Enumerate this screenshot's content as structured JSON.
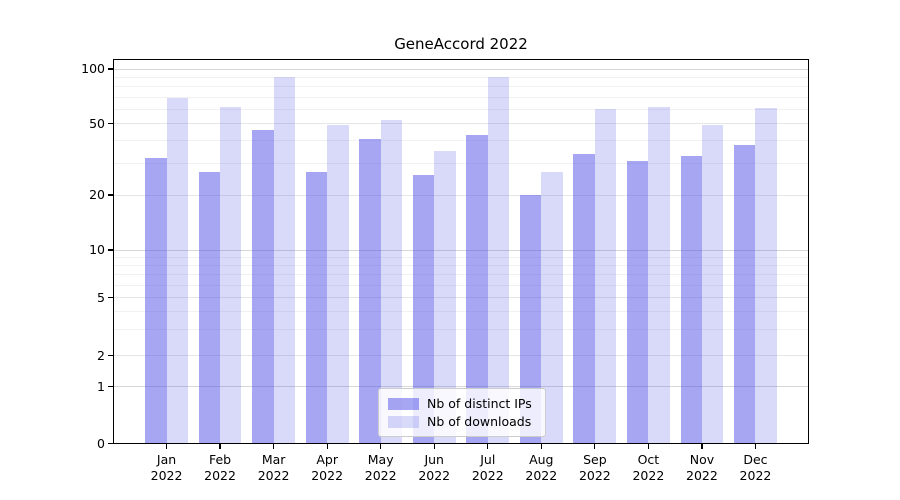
{
  "title": "GeneAccord 2022",
  "colors": {
    "bar_distinct_ips": "rgba(80,80,230,0.51)",
    "bar_downloads": "rgba(80,80,230,0.22)",
    "grid_major": "#d7d7d7",
    "grid_labeled_minor": "#e6e6e6",
    "grid_minor": "#f1f1f1",
    "axis": "#000000"
  },
  "y_axis": {
    "tick_labels": [
      "100",
      "50",
      "20",
      "10",
      "5",
      "2",
      "1",
      "0"
    ],
    "tick_values": [
      100,
      50,
      20,
      10,
      5,
      2,
      1,
      0
    ]
  },
  "x_axis": {
    "months": [
      "Jan",
      "Feb",
      "Mar",
      "Apr",
      "May",
      "Jun",
      "Jul",
      "Aug",
      "Sep",
      "Oct",
      "Nov",
      "Dec"
    ],
    "year": "2022"
  },
  "legend": {
    "items": [
      "Nb of distinct IPs",
      "Nb of downloads"
    ]
  },
  "chart_data": {
    "type": "bar",
    "title": "GeneAccord 2022",
    "categories": [
      "Jan 2022",
      "Feb 2022",
      "Mar 2022",
      "Apr 2022",
      "May 2022",
      "Jun 2022",
      "Jul 2022",
      "Aug 2022",
      "Sep 2022",
      "Oct 2022",
      "Nov 2022",
      "Dec 2022"
    ],
    "series": [
      {
        "name": "Nb of distinct IPs",
        "values": [
          32,
          27,
          46,
          27,
          41,
          26,
          43,
          20,
          34,
          31,
          33,
          38
        ]
      },
      {
        "name": "Nb of downloads",
        "values": [
          69,
          62,
          90,
          49,
          52,
          35,
          90,
          27,
          60,
          62,
          49,
          61
        ]
      }
    ],
    "yscale": "symlog",
    "yticks": [
      0,
      1,
      2,
      5,
      10,
      20,
      50,
      100
    ],
    "minor_yticks": [
      3,
      4,
      6,
      7,
      8,
      9,
      30,
      40,
      60,
      70,
      80,
      90
    ],
    "ylim": [
      0,
      114
    ],
    "xlabel": "",
    "ylabel": "",
    "grid": true,
    "legend_position": "lower center"
  }
}
